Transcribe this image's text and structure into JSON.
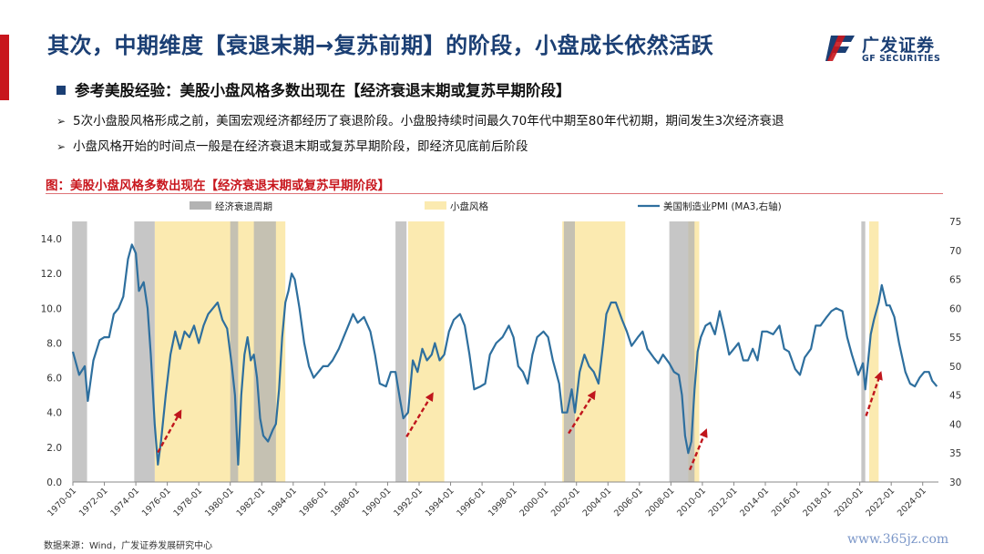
{
  "header": {
    "title": "其次，中期维度【衰退末期→复苏前期】的阶段，小盘成长依然活跃",
    "logo_cn": "广发证券",
    "logo_en": "GF SECURITIES"
  },
  "bullets": {
    "main": "参考美股经验：美股小盘风格多数出现在【经济衰退末期或复苏早期阶段】",
    "sub": [
      "5次小盘股风格形成之前，美国宏观经济都经历了衰退阶段。小盘股持续时间最久70年代中期至80年代初期，期间发生3次经济衰退",
      "小盘风格开始的时间点一般是在经济衰退末期或复苏早期阶段，即经济见底前后阶段"
    ]
  },
  "figure": {
    "title": "图：美股小盘风格多数出现在【经济衰退末期或复苏早期阶段】",
    "source": "数据来源：Wind，广发证券发展研究中心"
  },
  "watermark": "www.365jz.com",
  "colors": {
    "line": "#2e6f9e",
    "recession": "#b3b3b3",
    "small_cap": "#fbeab0",
    "arrow": "#c0161c",
    "brand": "#1b3f74",
    "accent": "#c8161d"
  },
  "chart_data": {
    "type": "line",
    "legend": [
      "经济衰退周期",
      "小盘风格",
      "美国制造业PMI (MA3,右轴)"
    ],
    "legend_position": "top",
    "series": [
      {
        "name": "美国制造业PMI (MA3,右轴)",
        "axis": "right",
        "points": [
          [
            1970.0,
            52.5
          ],
          [
            1970.4,
            48.5
          ],
          [
            1970.75,
            50
          ],
          [
            1970.95,
            44
          ],
          [
            1971.3,
            51
          ],
          [
            1971.7,
            54.5
          ],
          [
            1972.0,
            55
          ],
          [
            1972.3,
            55
          ],
          [
            1972.6,
            59
          ],
          [
            1972.9,
            60
          ],
          [
            1973.2,
            62
          ],
          [
            1973.5,
            68.5
          ],
          [
            1973.75,
            71
          ],
          [
            1974.0,
            69.5
          ],
          [
            1974.2,
            63
          ],
          [
            1974.5,
            64.5
          ],
          [
            1974.75,
            60
          ],
          [
            1974.95,
            52
          ],
          [
            1975.2,
            40
          ],
          [
            1975.4,
            33
          ],
          [
            1975.6,
            37
          ],
          [
            1975.9,
            45
          ],
          [
            1976.2,
            52
          ],
          [
            1976.5,
            56
          ],
          [
            1976.8,
            53
          ],
          [
            1977.1,
            56
          ],
          [
            1977.4,
            55
          ],
          [
            1977.7,
            57
          ],
          [
            1978.0,
            54
          ],
          [
            1978.3,
            57
          ],
          [
            1978.6,
            59
          ],
          [
            1978.9,
            60
          ],
          [
            1979.2,
            61
          ],
          [
            1979.5,
            58
          ],
          [
            1979.8,
            56.5
          ],
          [
            1980.1,
            50
          ],
          [
            1980.3,
            45
          ],
          [
            1980.5,
            33
          ],
          [
            1980.7,
            45
          ],
          [
            1980.9,
            52
          ],
          [
            1981.1,
            55
          ],
          [
            1981.3,
            51
          ],
          [
            1981.5,
            52
          ],
          [
            1981.7,
            48
          ],
          [
            1981.9,
            41
          ],
          [
            1982.1,
            38
          ],
          [
            1982.4,
            37
          ],
          [
            1982.7,
            39
          ],
          [
            1982.9,
            40
          ],
          [
            1983.1,
            46
          ],
          [
            1983.3,
            55
          ],
          [
            1983.5,
            61
          ],
          [
            1983.7,
            63
          ],
          [
            1983.9,
            66
          ],
          [
            1984.1,
            65
          ],
          [
            1984.4,
            60
          ],
          [
            1984.7,
            54
          ],
          [
            1985.0,
            50
          ],
          [
            1985.3,
            48
          ],
          [
            1985.6,
            49
          ],
          [
            1985.9,
            50
          ],
          [
            1986.2,
            50
          ],
          [
            1986.5,
            51
          ],
          [
            1986.9,
            53
          ],
          [
            1987.2,
            55
          ],
          [
            1987.5,
            57
          ],
          [
            1987.8,
            59
          ],
          [
            1988.1,
            57.5
          ],
          [
            1988.5,
            58.5
          ],
          [
            1988.9,
            56
          ],
          [
            1989.2,
            52
          ],
          [
            1989.5,
            47
          ],
          [
            1989.9,
            46.5
          ],
          [
            1990.2,
            49
          ],
          [
            1990.5,
            49
          ],
          [
            1990.8,
            44
          ],
          [
            1991.0,
            41
          ],
          [
            1991.3,
            42
          ],
          [
            1991.6,
            51
          ],
          [
            1991.9,
            49
          ],
          [
            1992.2,
            53
          ],
          [
            1992.5,
            51
          ],
          [
            1992.8,
            52
          ],
          [
            1993.0,
            54
          ],
          [
            1993.3,
            51
          ],
          [
            1993.6,
            52
          ],
          [
            1993.9,
            56
          ],
          [
            1994.2,
            58
          ],
          [
            1994.6,
            59
          ],
          [
            1994.9,
            57
          ],
          [
            1995.2,
            52
          ],
          [
            1995.5,
            46
          ],
          [
            1995.9,
            46.5
          ],
          [
            1996.2,
            47
          ],
          [
            1996.5,
            52
          ],
          [
            1996.9,
            54
          ],
          [
            1997.3,
            55
          ],
          [
            1997.7,
            57
          ],
          [
            1998.0,
            55
          ],
          [
            1998.3,
            50
          ],
          [
            1998.6,
            49
          ],
          [
            1998.9,
            47
          ],
          [
            1999.2,
            52
          ],
          [
            1999.5,
            55
          ],
          [
            1999.9,
            56
          ],
          [
            2000.2,
            55
          ],
          [
            2000.5,
            51
          ],
          [
            2000.9,
            47
          ],
          [
            2001.1,
            42
          ],
          [
            2001.4,
            42
          ],
          [
            2001.7,
            46
          ],
          [
            2001.9,
            42
          ],
          [
            2002.2,
            49
          ],
          [
            2002.5,
            52
          ],
          [
            2002.8,
            50
          ],
          [
            2003.1,
            49
          ],
          [
            2003.4,
            47
          ],
          [
            2003.7,
            54
          ],
          [
            2003.9,
            59
          ],
          [
            2004.2,
            61
          ],
          [
            2004.5,
            61
          ],
          [
            2004.9,
            58
          ],
          [
            2005.2,
            56
          ],
          [
            2005.5,
            53.5
          ],
          [
            2005.9,
            55
          ],
          [
            2006.2,
            56
          ],
          [
            2006.5,
            53
          ],
          [
            2006.9,
            51.5
          ],
          [
            2007.2,
            50.5
          ],
          [
            2007.5,
            52
          ],
          [
            2007.9,
            50.5
          ],
          [
            2008.2,
            49
          ],
          [
            2008.5,
            48.5
          ],
          [
            2008.7,
            45
          ],
          [
            2008.9,
            38
          ],
          [
            2009.1,
            35
          ],
          [
            2009.3,
            37
          ],
          [
            2009.5,
            46
          ],
          [
            2009.7,
            52.5
          ],
          [
            2009.9,
            55
          ],
          [
            2010.2,
            57
          ],
          [
            2010.5,
            57.5
          ],
          [
            2010.8,
            55.5
          ],
          [
            2011.1,
            59.5
          ],
          [
            2011.4,
            56
          ],
          [
            2011.7,
            52
          ],
          [
            2012.0,
            53
          ],
          [
            2012.3,
            54
          ],
          [
            2012.6,
            51
          ],
          [
            2012.9,
            51
          ],
          [
            2013.2,
            53
          ],
          [
            2013.5,
            51
          ],
          [
            2013.8,
            56
          ],
          [
            2014.1,
            56
          ],
          [
            2014.5,
            55.5
          ],
          [
            2014.9,
            57
          ],
          [
            2015.2,
            53
          ],
          [
            2015.5,
            52.5
          ],
          [
            2015.9,
            49.5
          ],
          [
            2016.2,
            48.5
          ],
          [
            2016.5,
            51.5
          ],
          [
            2016.9,
            53
          ],
          [
            2017.2,
            57
          ],
          [
            2017.5,
            57
          ],
          [
            2017.9,
            58.5
          ],
          [
            2018.2,
            59.5
          ],
          [
            2018.5,
            60
          ],
          [
            2018.9,
            59.5
          ],
          [
            2019.2,
            55
          ],
          [
            2019.5,
            52
          ],
          [
            2019.9,
            48.5
          ],
          [
            2020.2,
            50.5
          ],
          [
            2020.35,
            46
          ],
          [
            2020.5,
            50
          ],
          [
            2020.7,
            55.5
          ],
          [
            2020.9,
            58
          ],
          [
            2021.2,
            61
          ],
          [
            2021.4,
            64
          ],
          [
            2021.7,
            60.5
          ],
          [
            2021.9,
            60.5
          ],
          [
            2022.2,
            58.5
          ],
          [
            2022.5,
            54
          ],
          [
            2022.9,
            49
          ],
          [
            2023.2,
            47
          ],
          [
            2023.5,
            46.5
          ],
          [
            2023.8,
            48
          ],
          [
            2024.1,
            49
          ],
          [
            2024.4,
            49
          ],
          [
            2024.6,
            47.5
          ],
          [
            2024.9,
            46.5
          ]
        ]
      }
    ],
    "recession_periods": [
      [
        1969.95,
        1970.9
      ],
      [
        1973.9,
        1975.2
      ],
      [
        1980.0,
        1980.5
      ],
      [
        1981.5,
        1982.9
      ],
      [
        1990.5,
        1991.2
      ],
      [
        2001.2,
        2001.9
      ],
      [
        2007.9,
        2009.5
      ],
      [
        2020.1,
        2020.35
      ]
    ],
    "small_cap_periods": [
      [
        1975.2,
        1983.5
      ],
      [
        1991.3,
        1993.6
      ],
      [
        2001.1,
        2005.1
      ],
      [
        2009.1,
        2009.8
      ],
      [
        2020.6,
        2021.2
      ]
    ],
    "arrows": [
      [
        [
          1975.4,
          1.7
        ],
        [
          1976.8,
          4.0
        ]
      ],
      [
        [
          1991.2,
          2.6
        ],
        [
          1992.8,
          5.0
        ]
      ],
      [
        [
          2001.5,
          2.8
        ],
        [
          2003.1,
          5.1
        ]
      ],
      [
        [
          2009.2,
          0.7
        ],
        [
          2010.2,
          2.9
        ]
      ],
      [
        [
          2020.4,
          3.8
        ],
        [
          2021.3,
          6.2
        ]
      ]
    ],
    "left_axis": {
      "range": [
        0,
        15
      ],
      "ticks": [
        "0.0",
        "2.0",
        "4.0",
        "6.0",
        "8.0",
        "10.0",
        "12.0",
        "14.0"
      ]
    },
    "right_axis": {
      "range": [
        30,
        75
      ],
      "ticks": [
        "30",
        "35",
        "40",
        "45",
        "50",
        "55",
        "60",
        "65",
        "70",
        "75"
      ]
    },
    "x_axis": {
      "range": [
        1970,
        2025
      ],
      "ticks": [
        "1970-01",
        "1972-01",
        "1974-01",
        "1976-01",
        "1978-01",
        "1980-01",
        "1982-01",
        "1984-01",
        "1986-01",
        "1988-01",
        "1990-01",
        "1992-01",
        "1994-01",
        "1996-01",
        "1998-01",
        "2000-01",
        "2002-01",
        "2004-01",
        "2006-01",
        "2008-01",
        "2010-01",
        "2012-01",
        "2014-01",
        "2016-01",
        "2018-01",
        "2020-01",
        "2022-01",
        "2024-01"
      ]
    },
    "grid": false
  }
}
